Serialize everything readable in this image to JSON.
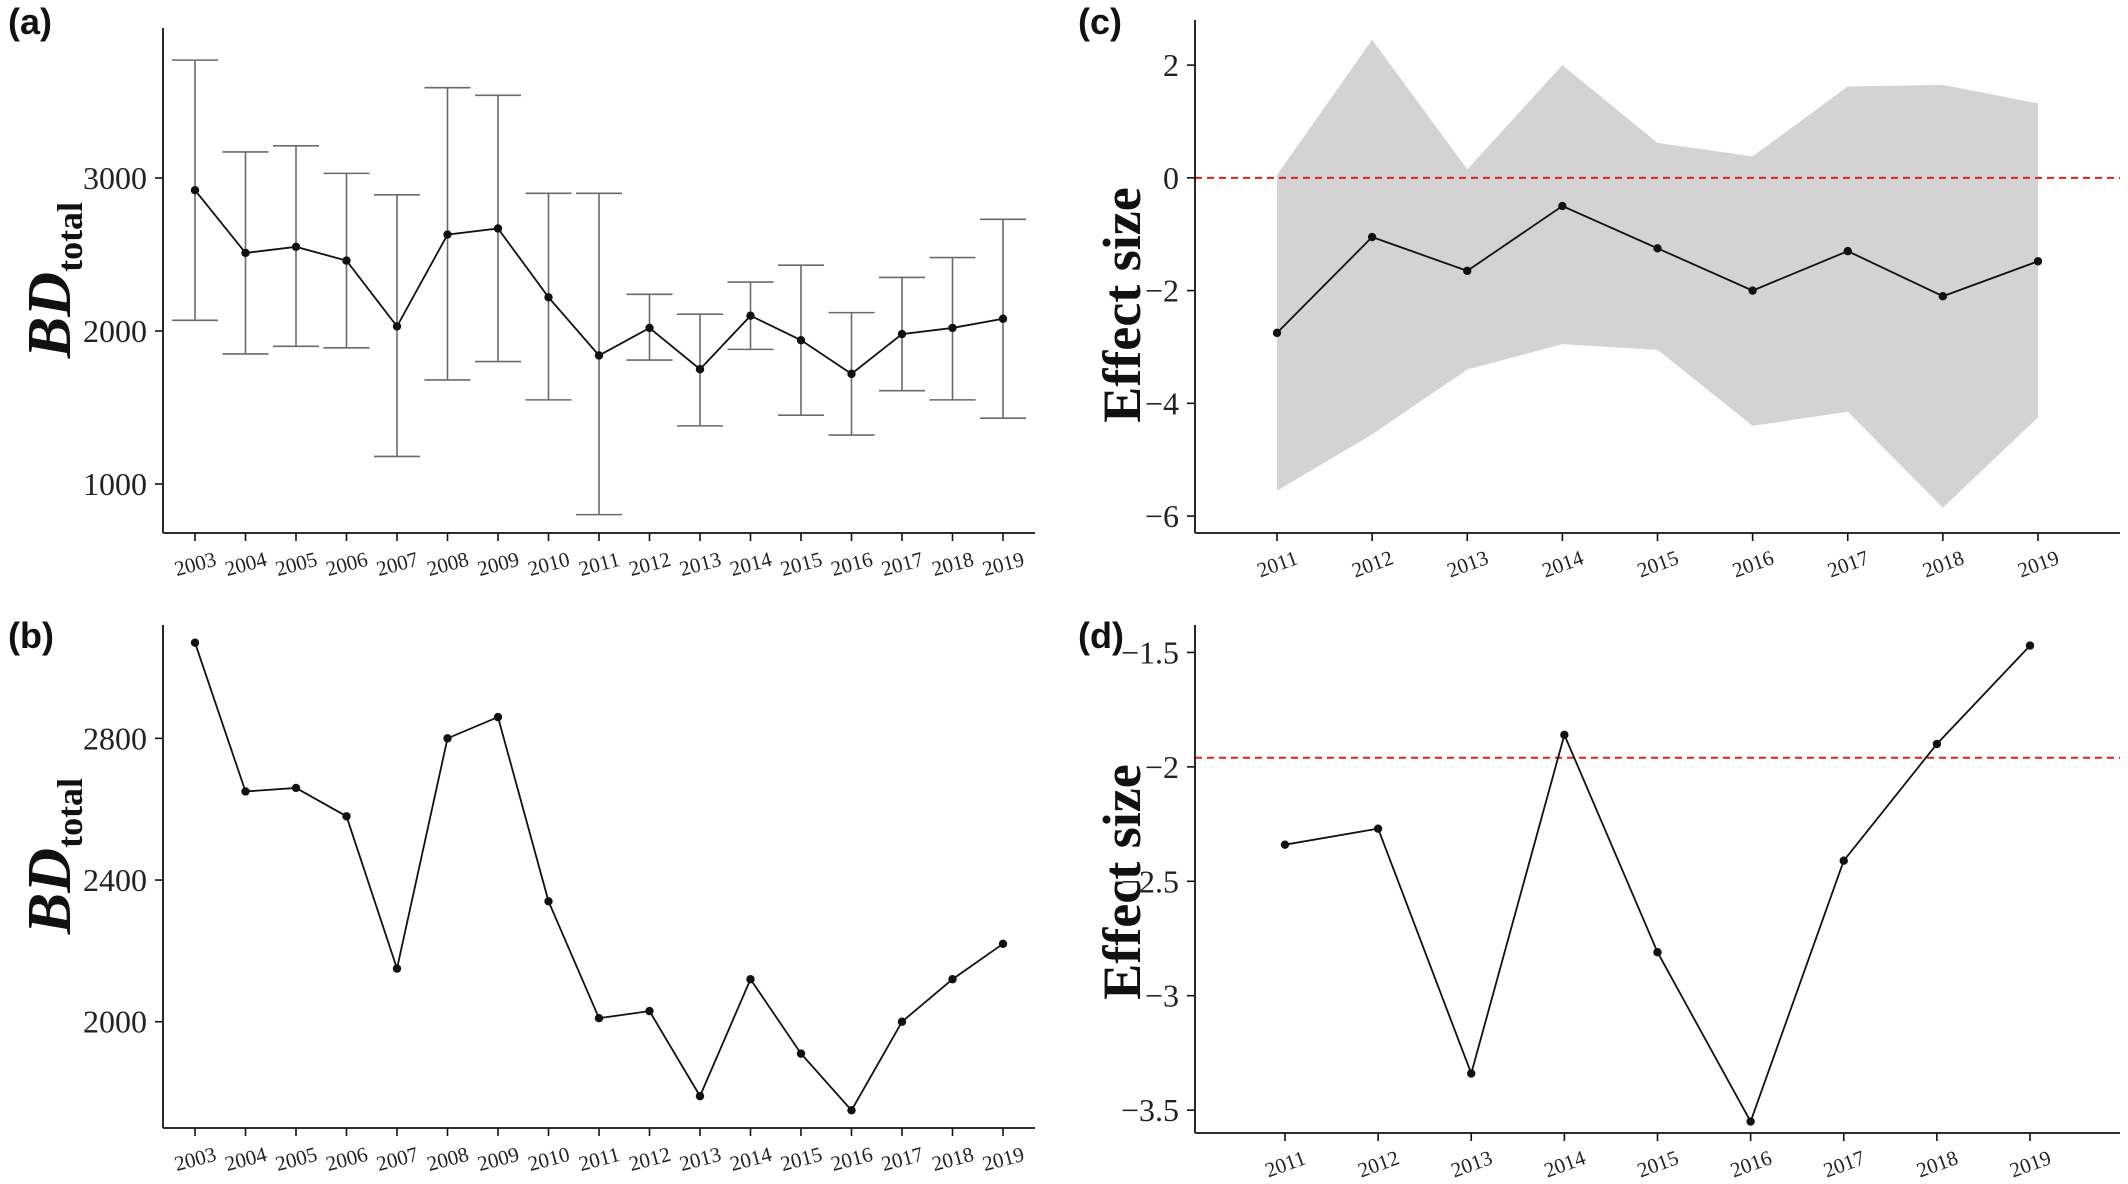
{
  "chart_data": [
    {
      "panel": "(a)",
      "type": "line",
      "ylabel": "BD",
      "ylabel_sub": "total",
      "x": [
        "2003",
        "2004",
        "2005",
        "2006",
        "2007",
        "2008",
        "2009",
        "2010",
        "2011",
        "2012",
        "2013",
        "2014",
        "2015",
        "2016",
        "2017",
        "2018",
        "2019"
      ],
      "values": [
        2920,
        2510,
        2550,
        2460,
        2030,
        2630,
        2670,
        2220,
        1840,
        2020,
        1750,
        2100,
        1940,
        1720,
        1980,
        2020,
        2080
      ],
      "error_low": [
        2070,
        1850,
        1900,
        1890,
        1180,
        1680,
        1800,
        1550,
        800,
        1810,
        1380,
        1880,
        1450,
        1320,
        1610,
        1550,
        1430
      ],
      "error_high": [
        3770,
        3170,
        3210,
        3030,
        2890,
        3590,
        3540,
        2900,
        2900,
        2240,
        2110,
        2320,
        2430,
        2120,
        2350,
        2480,
        2730
      ],
      "ylim": [
        680,
        3980
      ],
      "yticks": [
        1000,
        2000,
        3000
      ],
      "yticklabels": [
        "1000",
        "2000",
        "3000"
      ]
    },
    {
      "panel": "(b)",
      "type": "line",
      "ylabel": "BD",
      "ylabel_sub": "total",
      "x": [
        "2003",
        "2004",
        "2005",
        "2006",
        "2007",
        "2008",
        "2009",
        "2010",
        "2011",
        "2012",
        "2013",
        "2014",
        "2015",
        "2016",
        "2017",
        "2018",
        "2019"
      ],
      "values": [
        3070,
        2650,
        2660,
        2580,
        2150,
        2800,
        2860,
        2340,
        2010,
        2030,
        1790,
        2120,
        1910,
        1750,
        2000,
        2120,
        2220
      ],
      "ylim": [
        1700,
        3120
      ],
      "yticks": [
        2000,
        2400,
        2800
      ],
      "yticklabels": [
        "2000",
        "2400",
        "2800"
      ]
    },
    {
      "panel": "(c)",
      "type": "line",
      "ylabel": "Effect size",
      "x": [
        "2011",
        "2012",
        "2013",
        "2014",
        "2015",
        "2016",
        "2017",
        "2018",
        "2019"
      ],
      "values": [
        -2.75,
        -1.05,
        -1.65,
        -0.5,
        -1.25,
        -2.0,
        -1.3,
        -2.1,
        -1.48
      ],
      "band_low": [
        -5.55,
        -4.55,
        -3.4,
        -2.95,
        -3.05,
        -4.4,
        -4.15,
        -5.85,
        -4.25
      ],
      "band_high": [
        0.05,
        2.45,
        0.15,
        2.0,
        0.62,
        0.38,
        1.62,
        1.65,
        1.32
      ],
      "reference_line": 0,
      "reference_color": "#e0201c",
      "band_color": "#d3d3d3",
      "ylim": [
        -6.3,
        2.8
      ],
      "yticks": [
        -6,
        -4,
        -2,
        0,
        2
      ],
      "yticklabels": [
        "−6",
        "−4",
        "−2",
        "0",
        "2"
      ]
    },
    {
      "panel": "(d)",
      "type": "line",
      "ylabel": "Effect size",
      "x": [
        "2011",
        "2012",
        "2013",
        "2014",
        "2015",
        "2016",
        "2017",
        "2018",
        "2019"
      ],
      "values": [
        -2.34,
        -2.27,
        -3.34,
        -1.86,
        -2.81,
        -3.55,
        -2.41,
        -1.9,
        -1.47
      ],
      "reference_line": -1.96,
      "reference_color": "#e0201c",
      "ylim": [
        -3.6,
        -1.38
      ],
      "yticks": [
        -3.5,
        -3,
        -2.5,
        -2,
        -1.5
      ],
      "yticklabels": [
        "−3.5",
        "−3",
        "−2.5",
        "−2",
        "−1.5"
      ]
    }
  ]
}
